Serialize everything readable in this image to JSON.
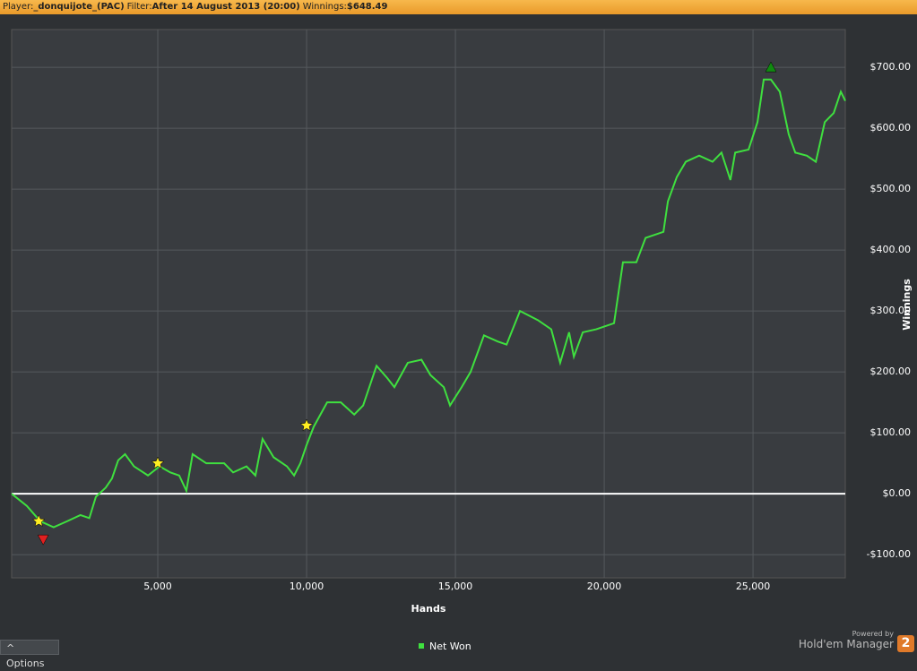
{
  "header": {
    "player_label": "Player:",
    "player": "_donquijote_(PAC)",
    "filter_label": "Filter:",
    "filter": "After 14 August 2013 (20:00)",
    "winnings_label": "Winnings:",
    "winnings": "$648.49"
  },
  "chart_data": {
    "type": "line",
    "x_label": "Hands",
    "y_label": "Winnings",
    "xlim": [
      90,
      28100
    ],
    "ylim": [
      -138,
      762
    ],
    "xticks": [
      {
        "value": 5000,
        "label": "5,000"
      },
      {
        "value": 10000,
        "label": "10,000"
      },
      {
        "value": 15000,
        "label": "15,000"
      },
      {
        "value": 20000,
        "label": "20,000"
      },
      {
        "value": 25000,
        "label": "25,000"
      }
    ],
    "yticks": [
      {
        "value": -100,
        "label": "-$100.00"
      },
      {
        "value": 0,
        "label": "$0.00"
      },
      {
        "value": 100,
        "label": "$100.00"
      },
      {
        "value": 200,
        "label": "$200.00"
      },
      {
        "value": 300,
        "label": "$300.00"
      },
      {
        "value": 400,
        "label": "$400.00"
      },
      {
        "value": 500,
        "label": "$500.00"
      },
      {
        "value": 600,
        "label": "$600.00"
      },
      {
        "value": 700,
        "label": "$700.00"
      }
    ],
    "grid": true,
    "zero_line": true,
    "x": [
      90,
      600,
      1050,
      1500,
      1960,
      2400,
      2700,
      2920,
      3250,
      3460,
      3670,
      3900,
      4200,
      4670,
      5060,
      5420,
      5720,
      5960,
      6170,
      6630,
      7230,
      7530,
      7980,
      8280,
      8520,
      8890,
      9340,
      9580,
      9790,
      10000,
      10240,
      10690,
      11150,
      11600,
      11900,
      12350,
      12710,
      12950,
      13400,
      13860,
      14160,
      14610,
      14820,
      15210,
      15510,
      15960,
      16420,
      16720,
      17170,
      17770,
      18220,
      18520,
      18820,
      18980,
      19280,
      19730,
      20330,
      20630,
      21080,
      21390,
      21990,
      22140,
      22440,
      22740,
      23190,
      23640,
      23940,
      24240,
      24400,
      24850,
      25150,
      25360,
      25600,
      25900,
      26200,
      26420,
      26810,
      27110,
      27410,
      27710,
      27950,
      28100
    ],
    "series": [
      {
        "name": "Net Won",
        "color": "#3fe03f",
        "values": [
          0,
          -20,
          -45,
          -55,
          -45,
          -35,
          -40,
          -5,
          10,
          25,
          55,
          65,
          45,
          30,
          45,
          35,
          30,
          5,
          65,
          50,
          50,
          35,
          45,
          30,
          90,
          60,
          45,
          30,
          50,
          80,
          110,
          150,
          150,
          130,
          145,
          210,
          190,
          175,
          215,
          220,
          195,
          175,
          145,
          175,
          200,
          260,
          250,
          245,
          300,
          285,
          270,
          215,
          265,
          225,
          265,
          270,
          280,
          380,
          380,
          420,
          430,
          480,
          520,
          545,
          555,
          545,
          560,
          515,
          560,
          565,
          610,
          680,
          680,
          660,
          590,
          560,
          555,
          545,
          610,
          625,
          660,
          645
        ]
      }
    ],
    "markers": [
      {
        "shape": "star",
        "color": "#ffee22",
        "x": 1000,
        "y": -45
      },
      {
        "shape": "star",
        "color": "#ffee22",
        "x": 5000,
        "y": 50
      },
      {
        "shape": "star",
        "color": "#ffee22",
        "x": 10000,
        "y": 112
      },
      {
        "shape": "down",
        "color": "#e02020",
        "x": 1150,
        "y": -75
      },
      {
        "shape": "up",
        "color": "#108a10",
        "x": 25600,
        "y": 700
      }
    ]
  },
  "footer": {
    "options": "Options",
    "powered_by": "Powered by",
    "brand": "Hold'em Manager",
    "badge": "2"
  }
}
